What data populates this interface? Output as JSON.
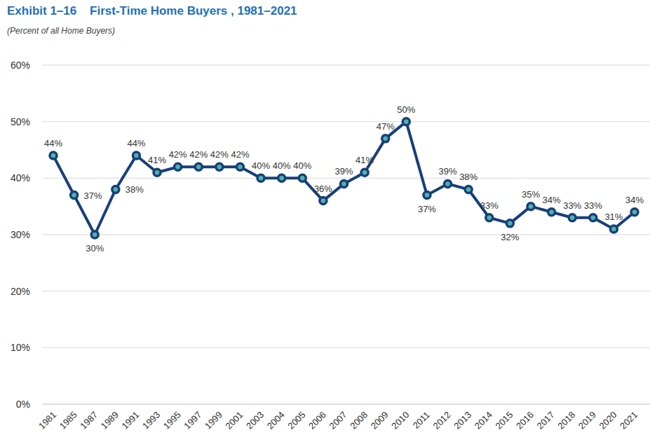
{
  "chart_data": {
    "type": "line",
    "title": "Exhibit 1–16    First-Time Home Buyers , 1981–2021",
    "subtitle": "(Percent of all Home Buyers)",
    "categories": [
      "1981",
      "1985",
      "1987",
      "1989",
      "1991",
      "1993",
      "1995",
      "1997",
      "1999",
      "2001",
      "2003",
      "2004",
      "2005",
      "2006",
      "2007",
      "2008",
      "2009",
      "2010",
      "2011",
      "2012",
      "2013",
      "2014",
      "2015",
      "2016",
      "2017",
      "2018",
      "2019",
      "2020",
      "2021"
    ],
    "values": [
      44,
      37,
      30,
      38,
      44,
      41,
      42,
      42,
      42,
      42,
      40,
      40,
      40,
      36,
      39,
      41,
      47,
      50,
      37,
      39,
      38,
      33,
      32,
      35,
      34,
      33,
      33,
      31,
      34
    ],
    "value_labels": [
      "44%",
      "37%",
      "30%",
      "38%",
      "44%",
      "41%",
      "42%",
      "42%",
      "42%",
      "42%",
      "40%",
      "40%",
      "40%",
      "36%",
      "39%",
      "41%",
      "47%",
      "50%",
      "37%",
      "39%",
      "38%",
      "33%",
      "32%",
      "35%",
      "34%",
      "33%",
      "33%",
      "31%",
      "34%"
    ],
    "color": "#173f7a",
    "marker": "circle",
    "data_labels": true,
    "ylim": [
      0,
      60
    ],
    "yticks": [
      {
        "value": 0,
        "label": "0%"
      },
      {
        "value": 10,
        "label": "10%"
      },
      {
        "value": 20,
        "label": "20%"
      },
      {
        "value": 30,
        "label": "30%"
      },
      {
        "value": 40,
        "label": "40%"
      },
      {
        "value": 50,
        "label": "50%"
      },
      {
        "value": 60,
        "label": "60%"
      }
    ],
    "grid": true
  }
}
